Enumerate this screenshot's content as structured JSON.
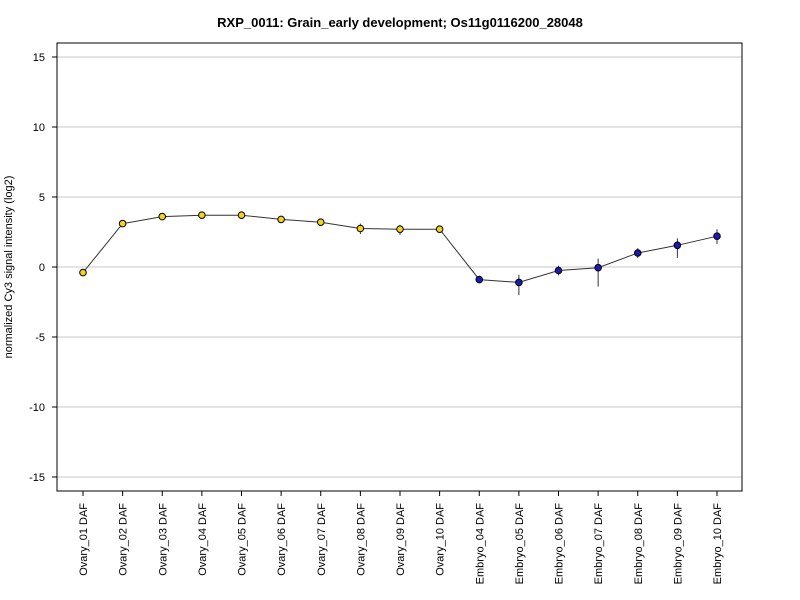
{
  "chart_data": {
    "type": "line",
    "title": "RXP_0011: Grain_early development; Os11g0116200_28048",
    "xlabel": "",
    "ylabel": "normalized Cy3 signal intensity (log2)",
    "ylim": [
      -16,
      16
    ],
    "yticks": [
      -15,
      -10,
      -5,
      0,
      5,
      10,
      15
    ],
    "ytick_labels": [
      "-15",
      "-10",
      "-5",
      "0",
      "5",
      "10",
      "15"
    ],
    "grid": true,
    "categories": [
      "Ovary_01 DAF",
      "Ovary_02 DAF",
      "Ovary_03 DAF",
      "Ovary_04 DAF",
      "Ovary_05 DAF",
      "Ovary_06 DAF",
      "Ovary_07 DAF",
      "Ovary_08 DAF",
      "Ovary_09 DAF",
      "Ovary_10 DAF",
      "Embryo_04 DAF",
      "Embryo_05 DAF",
      "Embryo_06 DAF",
      "Embryo_07 DAF",
      "Embryo_08 DAF",
      "Embryo_09 DAF",
      "Embryo_10 DAF"
    ],
    "series": [
      {
        "values": [
          -0.4,
          3.1,
          3.6,
          3.7,
          3.7,
          3.4,
          3.2,
          2.75,
          2.7,
          2.7,
          -0.9,
          -1.1,
          -0.25,
          -0.05,
          1.0,
          1.55,
          2.2
        ],
        "err_low": [
          -0.4,
          3.1,
          3.6,
          3.7,
          3.7,
          3.4,
          3.2,
          2.35,
          2.3,
          2.6,
          -0.9,
          -2.0,
          -0.6,
          -1.4,
          0.65,
          0.65,
          1.65
        ],
        "err_high": [
          -0.4,
          3.1,
          3.6,
          3.7,
          3.7,
          3.4,
          3.2,
          3.1,
          3.0,
          2.8,
          -0.9,
          -0.55,
          0.1,
          0.6,
          1.35,
          2.05,
          2.7
        ],
        "point_colors": [
          "#f2d21b",
          "#f2d21b",
          "#f2d21b",
          "#f2d21b",
          "#f2d21b",
          "#f2d21b",
          "#f2d21b",
          "#f2d21b",
          "#f2d21b",
          "#f2d21b",
          "#1a1ab8",
          "#1a1ab8",
          "#1a1ab8",
          "#1a1ab8",
          "#1a1ab8",
          "#1a1ab8",
          "#1a1ab8"
        ]
      }
    ]
  }
}
